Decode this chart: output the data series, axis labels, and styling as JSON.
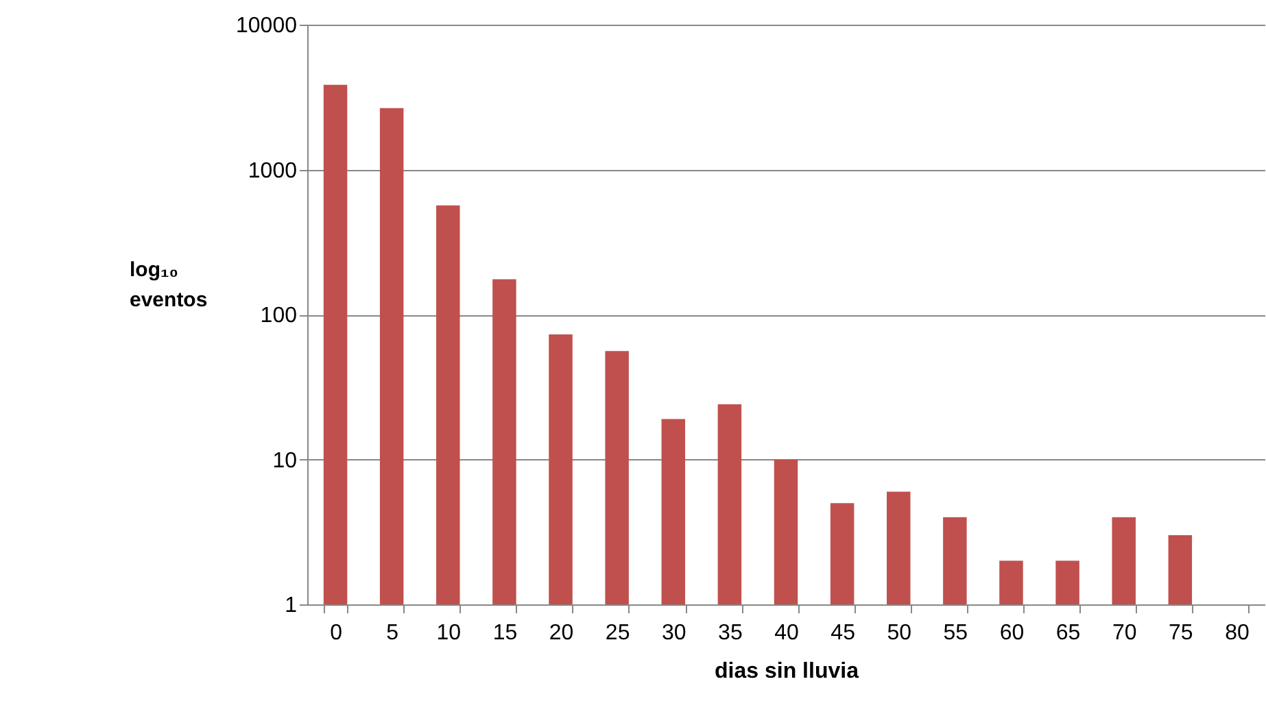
{
  "chart_data": {
    "type": "bar",
    "xlabel": "dias sin lluvia",
    "ylabel": "log₁₀ eventos",
    "categories": [
      "0",
      "5",
      "10",
      "15",
      "20",
      "25",
      "30",
      "35",
      "40",
      "45",
      "50",
      "55",
      "60",
      "65",
      "70",
      "75",
      "80"
    ],
    "values": [
      3850,
      2660,
      566,
      175,
      73,
      56,
      19,
      24,
      10,
      5,
      6,
      4,
      2,
      2,
      4,
      3,
      null
    ],
    "color": "#c0504d",
    "log": true,
    "ylim": [
      1,
      10000
    ],
    "yticks": [
      1,
      10,
      100,
      1000,
      10000
    ],
    "grid": "y"
  }
}
